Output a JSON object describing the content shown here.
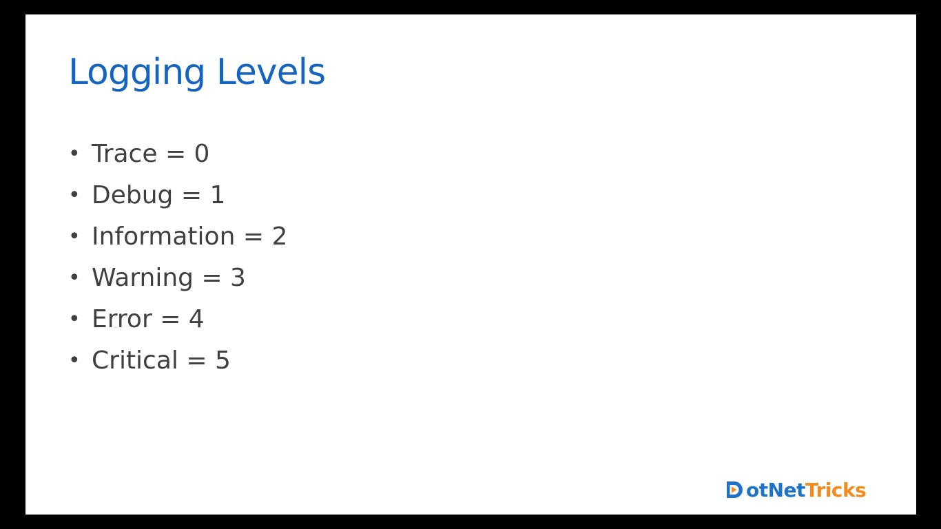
{
  "slide": {
    "title": "Logging Levels",
    "bullets": [
      {
        "marker": "•",
        "text": "Trace = 0"
      },
      {
        "marker": "•",
        "text": "Debug = 1"
      },
      {
        "marker": "•",
        "text": "Information = 2"
      },
      {
        "marker": "•",
        "text": "Warning = 3"
      },
      {
        "marker": "•",
        "text": "Error = 4"
      },
      {
        "marker": "•",
        "text": "Critical = 5"
      }
    ]
  },
  "logo": {
    "icon": "play-d-logo-icon",
    "text_part_1": "otNet",
    "text_part_2": "Tricks"
  },
  "colors": {
    "title": "#1565c0",
    "body_text": "#404040",
    "logo_blue": "#1e73c8",
    "logo_orange": "#f28c1e",
    "frame": "#000000",
    "slide_background": "#ffffff"
  }
}
